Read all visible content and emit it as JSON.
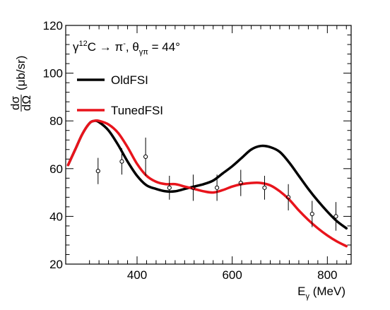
{
  "chart_data": {
    "type": "line",
    "title": "",
    "annotation": {
      "gamma": "γ",
      "mass_number": "12",
      "reaction_rest": "C → π",
      "pion_charge": "-",
      "theta": ", θ",
      "theta_sub": "γπ",
      "angle_text": " = 44°"
    },
    "xlabel": {
      "main": "E",
      "sub": "γ",
      "unit": " (MeV)"
    },
    "ylabel": {
      "numerator": "dσ",
      "denominator": "dΩ",
      "unit": "(μb/sr)"
    },
    "xlim": [
      250,
      850
    ],
    "ylim": [
      20,
      120
    ],
    "x_ticks": [
      400,
      600,
      800
    ],
    "y_ticks": [
      20,
      40,
      60,
      80,
      100,
      120
    ],
    "grid": false,
    "legend_placement": "top-left",
    "series": [
      {
        "name": "OldFSI",
        "color": "#000000",
        "x": [
          255,
          270,
          285,
          300,
          310,
          320,
          340,
          360,
          380,
          400,
          420,
          440,
          460,
          480,
          500,
          520,
          540,
          560,
          580,
          600,
          620,
          640,
          660,
          680,
          700,
          720,
          740,
          760,
          780,
          800,
          820,
          840
        ],
        "y": [
          61.5,
          68,
          74.5,
          79,
          80,
          79.5,
          76,
          70,
          63,
          57,
          53,
          51.5,
          50.5,
          50.5,
          51.5,
          52.5,
          53.5,
          55,
          58,
          61,
          64.5,
          68,
          69.5,
          69,
          67,
          62.5,
          57,
          51.5,
          46.5,
          42,
          38,
          35
        ]
      },
      {
        "name": "TunedFSI",
        "color": "#e8141c",
        "x": [
          255,
          270,
          285,
          300,
          310,
          320,
          340,
          360,
          380,
          400,
          420,
          440,
          460,
          480,
          500,
          520,
          540,
          560,
          580,
          600,
          620,
          640,
          660,
          680,
          700,
          720,
          740,
          760,
          780,
          800,
          820,
          840
        ],
        "y": [
          61.5,
          68,
          74.5,
          79,
          80,
          80,
          78.5,
          75,
          69,
          62,
          57,
          54.5,
          53.5,
          53.5,
          52.5,
          51.5,
          50.5,
          50,
          51,
          52.5,
          53.5,
          54,
          54,
          53,
          50.5,
          47,
          42.5,
          38.5,
          35,
          32,
          29.5,
          27.5
        ]
      }
    ],
    "data_points": {
      "x": [
        318,
        368,
        418,
        468,
        518,
        568,
        618,
        668,
        718,
        768,
        818
      ],
      "y": [
        59,
        63,
        65,
        52,
        52,
        52,
        54,
        52,
        48,
        41,
        40
      ],
      "err": [
        5.5,
        5.5,
        8,
        5,
        5.5,
        5.5,
        5.5,
        5,
        5.5,
        5.5,
        6
      ]
    }
  }
}
